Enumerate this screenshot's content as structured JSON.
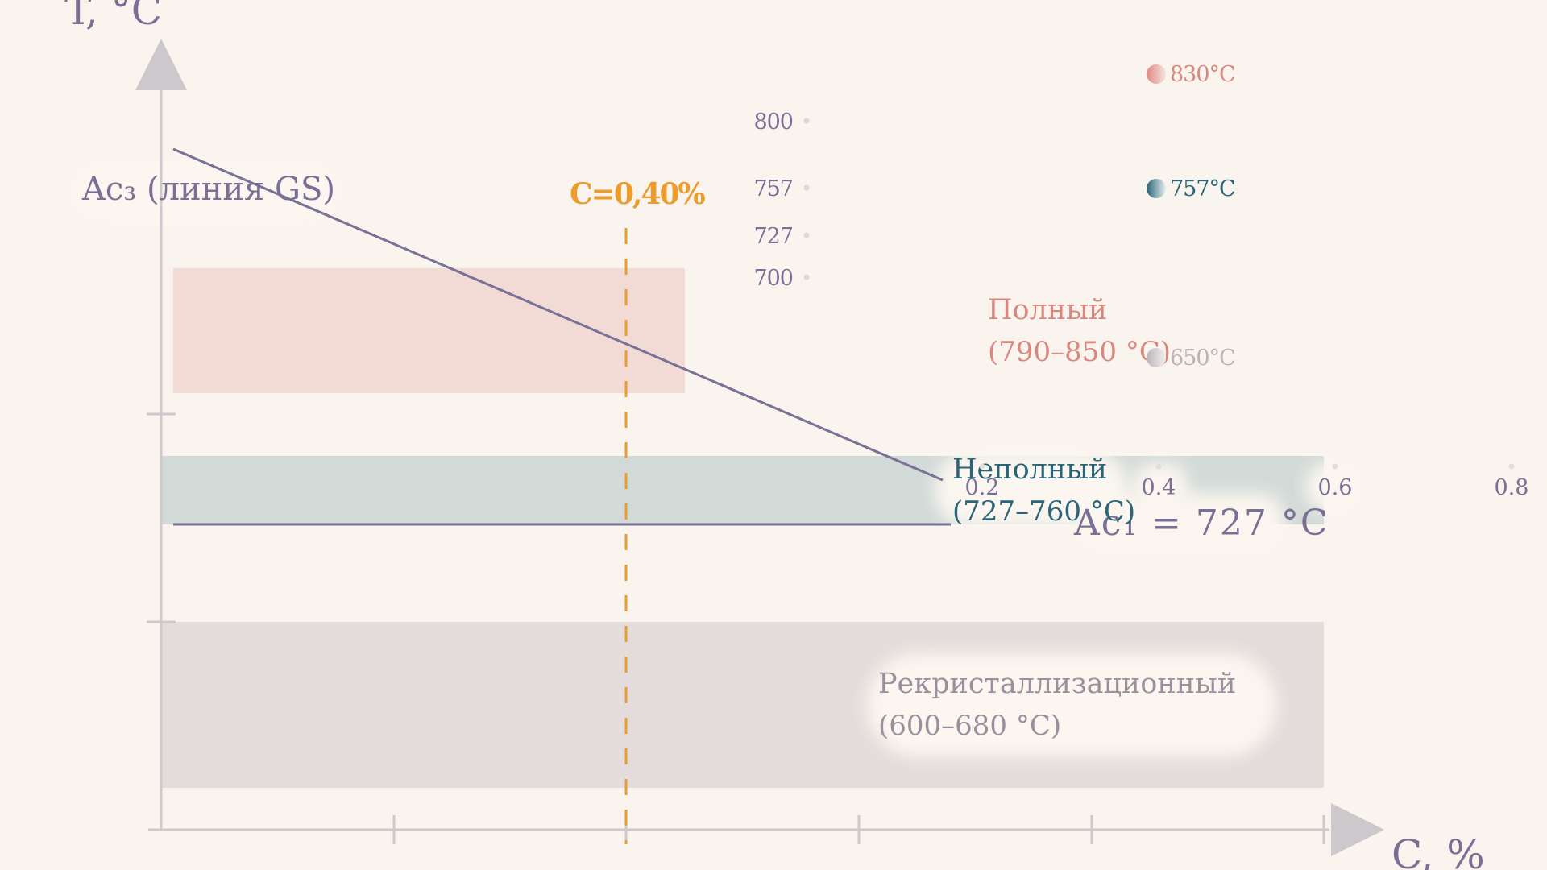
{
  "chart_data": {
    "type": "area",
    "title": "",
    "xlabel": "C, %",
    "ylabel": "T, °C",
    "xlim": [
      0,
      0.8
    ],
    "ylim": [
      600,
      830
    ],
    "x_ticks": [
      "0.2",
      "0.4",
      "0.6",
      "0.8"
    ],
    "y_ticks": [
      "800",
      "757",
      "727",
      "700"
    ],
    "lines": [
      {
        "name": "Ac₃ (линия GS)",
        "x": [
          0,
          0.8
        ],
        "y": [
          910,
          727
        ]
      },
      {
        "name": "Ac₁ = 727 °C",
        "x": [
          0,
          0.8
        ],
        "y": [
          727,
          727
        ]
      }
    ],
    "vertical_line": {
      "label": "C=0,40%",
      "x": 0.4
    },
    "zones": [
      {
        "label": "Полный",
        "range": "(790–850 °C)",
        "ymin": 790,
        "ymax": 850,
        "color": "#d98880"
      },
      {
        "label": "Неполный",
        "range": "(727–760 °C)",
        "ymin": 727,
        "ymax": 760,
        "color": "#2a6478"
      },
      {
        "label": "Рекристаллизационный",
        "range": "(600–680 °C)",
        "ymin": 600,
        "ymax": 680,
        "color": "#9a8f9c"
      }
    ],
    "markers": [
      {
        "label": "830°C",
        "value": 830,
        "color": "#d98880"
      },
      {
        "label": "757°C",
        "value": 757,
        "color": "#2a6478"
      },
      {
        "label": "650°C",
        "value": 650,
        "color": "#b9b4b8"
      }
    ]
  }
}
